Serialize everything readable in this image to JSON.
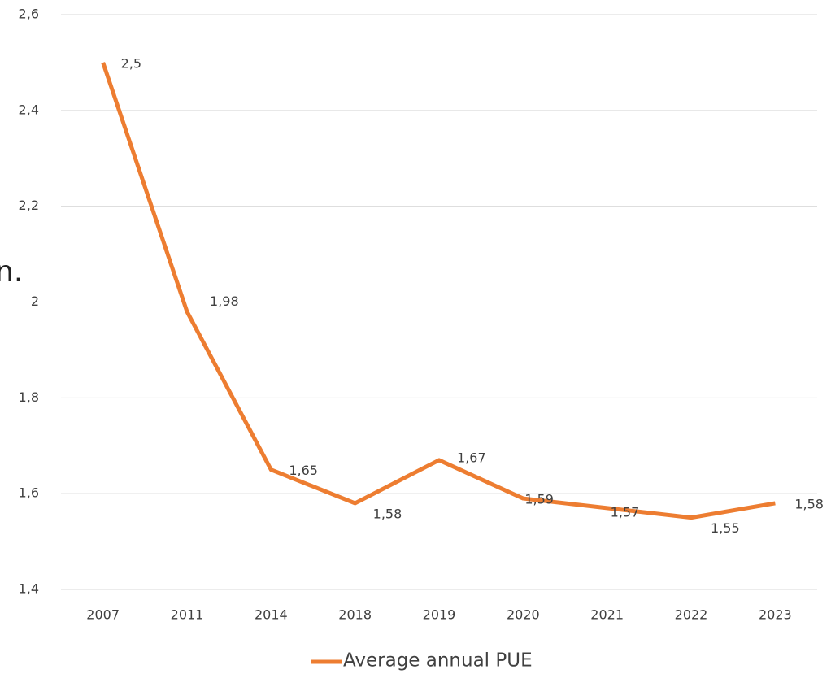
{
  "chart_data": {
    "type": "line",
    "annotation": "n.",
    "categories": [
      "2007",
      "2011",
      "2014",
      "2018",
      "2019",
      "2020",
      "2021",
      "2022",
      "2023"
    ],
    "series": [
      {
        "name": "Average annual PUE",
        "color": "#ed7d31",
        "values": [
          2.5,
          1.98,
          1.65,
          1.58,
          1.67,
          1.59,
          1.57,
          1.55,
          1.58
        ],
        "value_labels": [
          "2,5",
          "1,98",
          "1,65",
          "1,58",
          "1,67",
          "1,59",
          "1,57",
          "1,55",
          "1,58"
        ]
      }
    ],
    "ylim": [
      1.4,
      2.6
    ],
    "yticks": [
      {
        "value": 1.4,
        "label": "1,4"
      },
      {
        "value": 1.6,
        "label": "1,6"
      },
      {
        "value": 1.8,
        "label": "1,8"
      },
      2,
      {
        "value": 2.2,
        "label": "2,2"
      },
      {
        "value": 2.4,
        "label": "2,4"
      },
      {
        "value": 2.6,
        "label": "2,6"
      }
    ],
    "grid": true,
    "legend": "bottom"
  }
}
